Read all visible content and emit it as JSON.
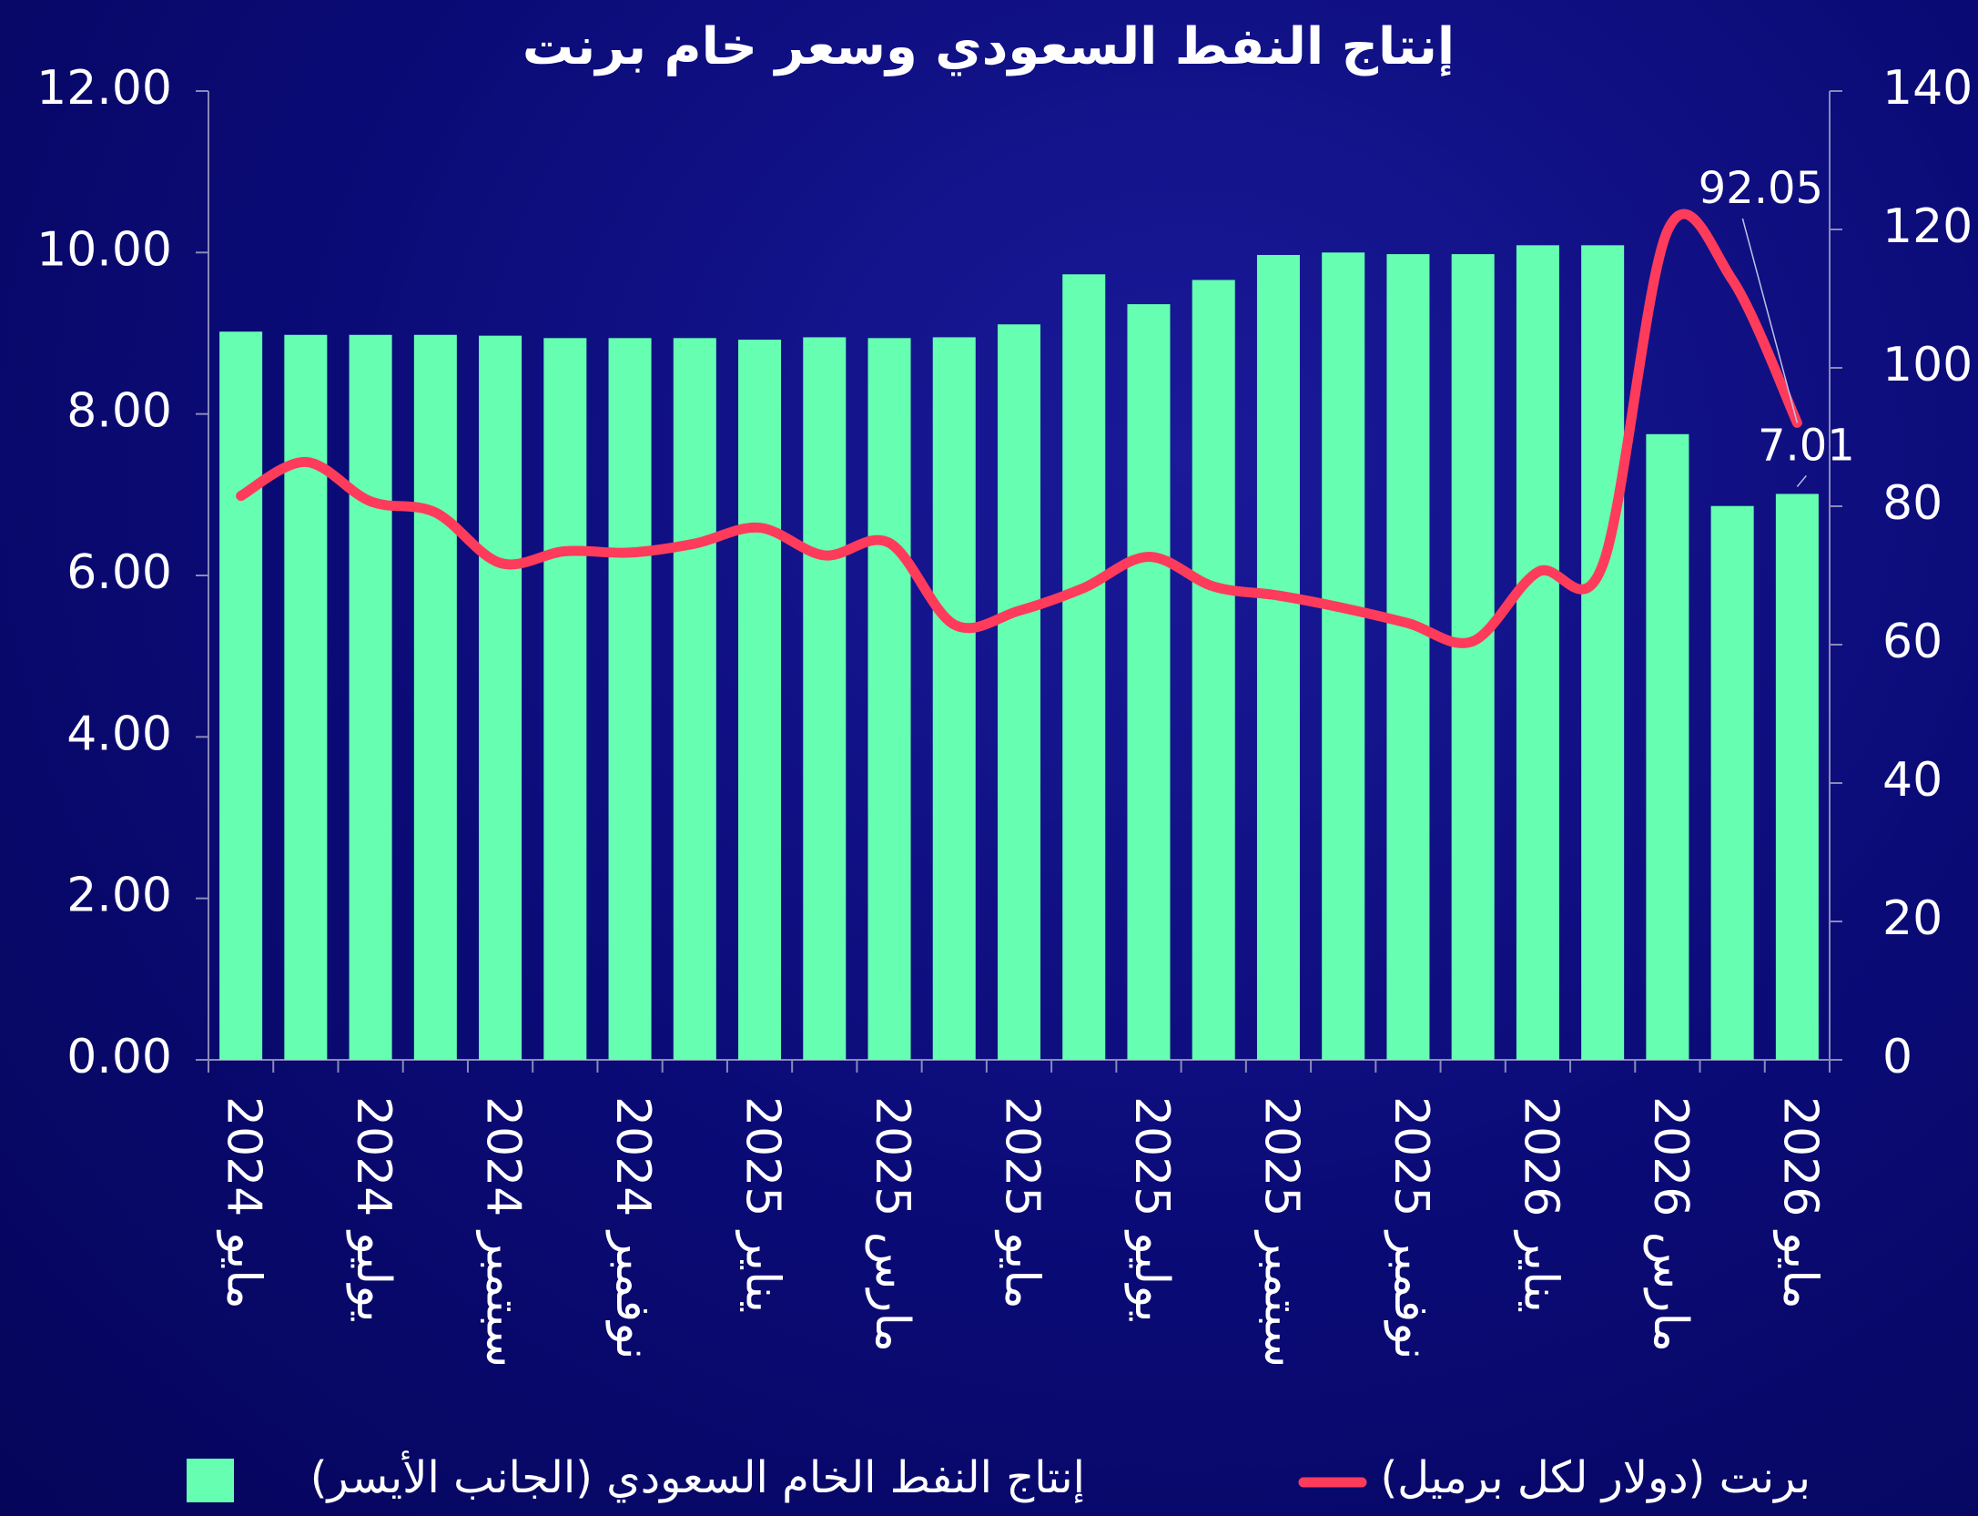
{
  "chart_data": {
    "type": "bar_line",
    "title": "إنتاج النفط السعودي وسعر خام برنت",
    "categories": [
      "مايو 2024",
      null,
      "يوليو 2024",
      null,
      "سبتمبر 2024",
      null,
      "نوفمبر 2024",
      null,
      "يناير 2025",
      null,
      "مارس 2025",
      null,
      "مايو 2025",
      null,
      "يوليو 2025",
      null,
      "سبتمبر 2025",
      null,
      "نوفمبر 2025",
      null,
      "يناير 2026",
      null,
      "مارس 2026",
      null,
      "مايو 2026"
    ],
    "series": [
      {
        "name": "إنتاج النفط الخام السعودي  (الجانب الأيسر)",
        "color": "#66ffb2",
        "type": "bar",
        "values": [
          9.02,
          8.98,
          8.98,
          8.98,
          8.97,
          8.94,
          8.94,
          8.94,
          8.92,
          8.95,
          8.94,
          8.95,
          9.11,
          9.73,
          9.36,
          9.66,
          9.97,
          10.0,
          9.98,
          9.98,
          10.09,
          10.09,
          7.75,
          6.86,
          7.01
        ],
        "value_labels": [
          null,
          null,
          null,
          null,
          null,
          null,
          null,
          null,
          null,
          null,
          null,
          null,
          null,
          null,
          null,
          null,
          null,
          null,
          null,
          null,
          null,
          null,
          null,
          null,
          "7.01"
        ]
      },
      {
        "name": "برنت (دولار لكل برميل)",
        "color": "#ff3b5c",
        "type": "line",
        "axis": "y2",
        "values": [
          81.5,
          86.4,
          80.7,
          79.1,
          71.8,
          73.5,
          73.3,
          74.6,
          76.9,
          72.9,
          74.7,
          62.9,
          64.9,
          68.2,
          72.7,
          68.4,
          67.1,
          65.3,
          63.1,
          60.5,
          70.5,
          71.5,
          119.8,
          112.7,
          92.05
        ],
        "value_labels": [
          null,
          null,
          null,
          null,
          null,
          null,
          null,
          null,
          null,
          null,
          null,
          null,
          null,
          null,
          null,
          null,
          null,
          null,
          null,
          null,
          null,
          null,
          null,
          null,
          "92.05"
        ]
      }
    ],
    "ylim": [
      0,
      12
    ],
    "yticks": [
      {
        "value": 0,
        "label": "0.00"
      },
      {
        "value": 2,
        "label": "2.00"
      },
      {
        "value": 4,
        "label": "4.00"
      },
      {
        "value": 6,
        "label": "6.00"
      },
      {
        "value": 8,
        "label": "8.00"
      },
      {
        "value": 10,
        "label": "10.00"
      },
      {
        "value": 12,
        "label": "12.00"
      }
    ],
    "y2lim": [
      0,
      140
    ],
    "y2ticks": [
      0,
      20,
      40,
      60,
      80,
      100,
      120,
      140
    ]
  }
}
